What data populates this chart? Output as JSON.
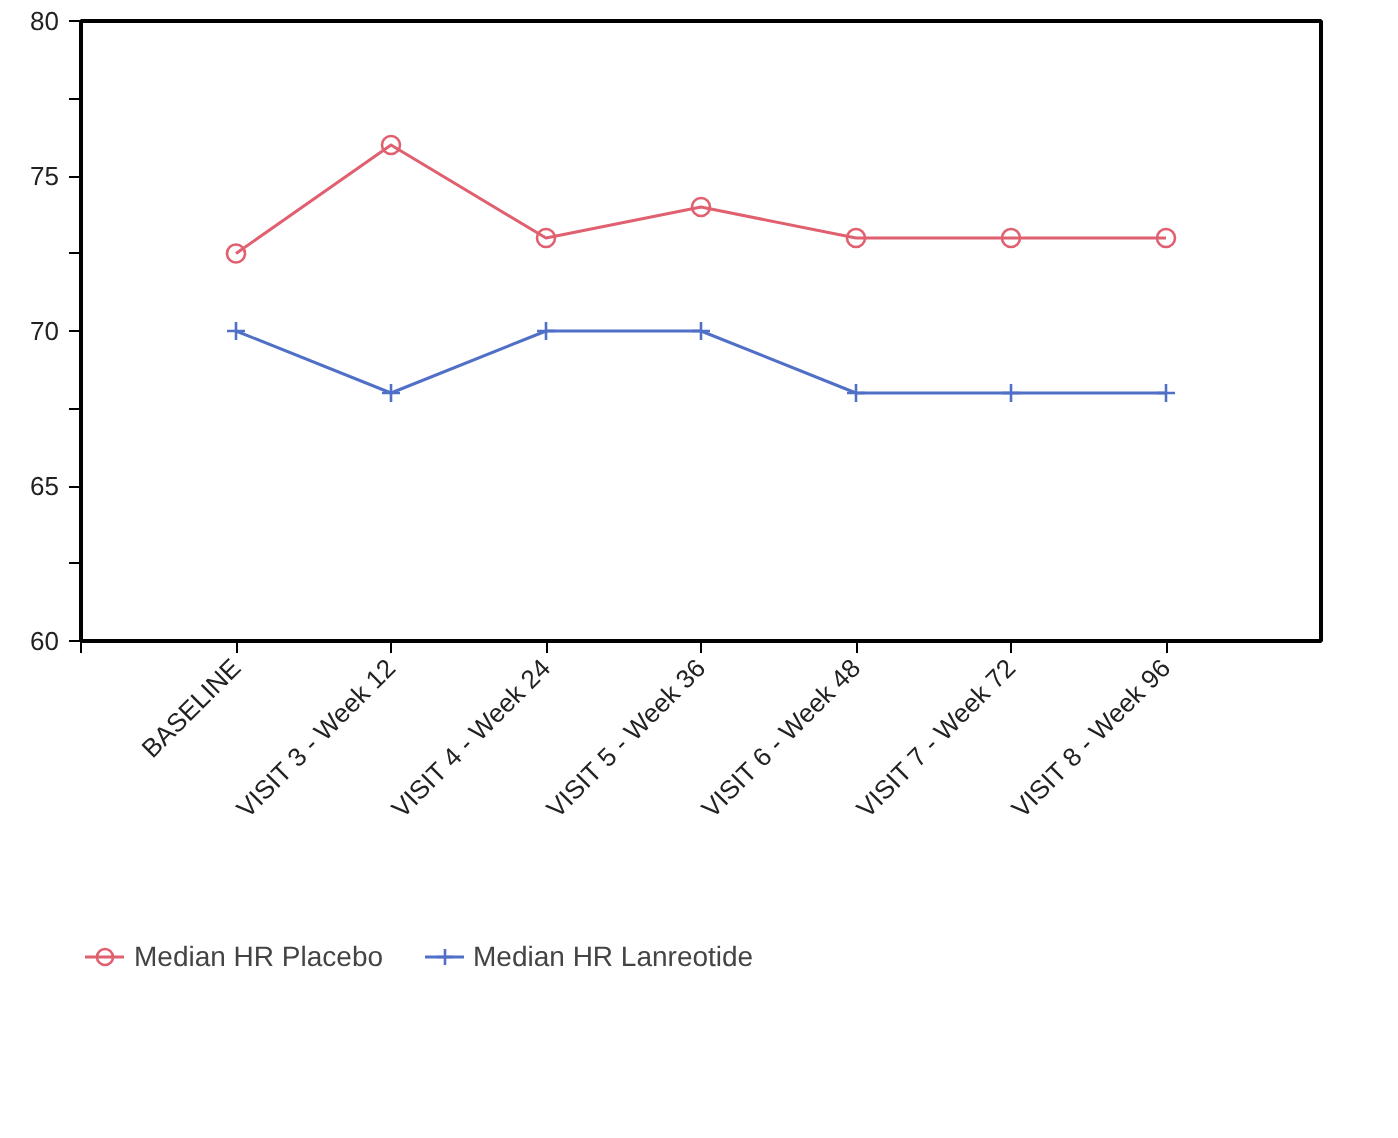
{
  "chart_data": {
    "type": "line",
    "categories": [
      "BASELINE",
      "VISIT 3 - Week 12",
      "VISIT 4 - Week 24",
      "VISIT 5 - Week 36",
      "VISIT 6 - Week 48",
      "VISIT 7 - Week 72",
      "VISIT 8 - Week 96"
    ],
    "series": [
      {
        "name": "Median HR Placebo",
        "color": "#e06070",
        "marker": "circle",
        "values": [
          72.5,
          76,
          73,
          74,
          73,
          73,
          73
        ]
      },
      {
        "name": "Median HR Lanreotide",
        "color": "#5070c8",
        "marker": "cross",
        "values": [
          70,
          68,
          70,
          70,
          68,
          68,
          68
        ]
      }
    ],
    "ylim": [
      60,
      80
    ],
    "yticks": [
      60,
      {
        "value": 62.5,
        "label": null
      },
      65,
      {
        "value": 67.5,
        "label": null
      },
      70,
      {
        "value": 72.5,
        "label": null
      },
      75,
      {
        "value": 77.5,
        "label": null
      },
      80
    ],
    "grid": false,
    "legend": "bottom",
    "line_style": "solid"
  }
}
